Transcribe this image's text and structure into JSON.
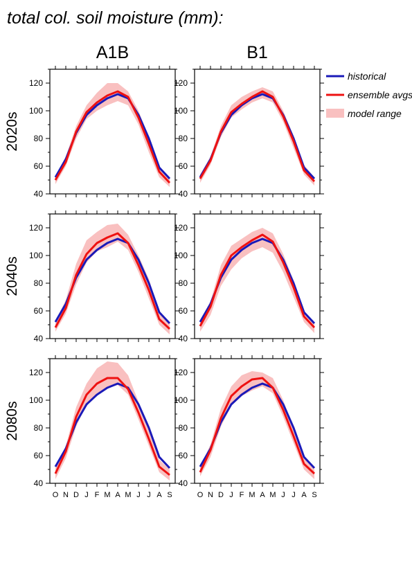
{
  "title": "total col. soil moisture (mm):",
  "columns": [
    "A1B",
    "B1"
  ],
  "rows": [
    "2020s",
    "2040s",
    "2080s"
  ],
  "legend": {
    "position": "right",
    "items": [
      {
        "label": "historical",
        "color": "#1a1ab8",
        "kind": "line"
      },
      {
        "label": "ensemble avgs",
        "color": "#ee1111",
        "kind": "line"
      },
      {
        "label": "model range",
        "color": "#f9c0c0",
        "kind": "band"
      }
    ]
  },
  "chart_data": {
    "type": "line",
    "months": [
      "O",
      "N",
      "D",
      "J",
      "F",
      "M",
      "A",
      "M",
      "J",
      "J",
      "A",
      "S"
    ],
    "ylim": [
      40,
      130
    ],
    "yticks": [
      40,
      60,
      80,
      100,
      120
    ],
    "grid": false,
    "historical": [
      52,
      65,
      84,
      97,
      104,
      109,
      112,
      109,
      97,
      80,
      59,
      51
    ],
    "panels": [
      {
        "column": "A1B",
        "row": "2020s",
        "ensemble": [
          50,
          63,
          85,
          99,
          106,
          111,
          114,
          110,
          95,
          76,
          56,
          48
        ],
        "range_min": [
          47,
          60,
          80,
          94,
          100,
          104,
          107,
          104,
          90,
          70,
          52,
          45
        ],
        "range_max": [
          53,
          67,
          89,
          104,
          113,
          120,
          120,
          114,
          100,
          81,
          60,
          51
        ]
      },
      {
        "column": "B1",
        "row": "2020s",
        "ensemble": [
          51,
          64,
          85,
          99,
          105,
          110,
          114,
          110,
          96,
          78,
          57,
          49
        ],
        "range_min": [
          48,
          61,
          81,
          95,
          101,
          106,
          109,
          106,
          92,
          73,
          54,
          46
        ],
        "range_max": [
          54,
          67,
          89,
          104,
          110,
          114,
          117,
          114,
          100,
          82,
          61,
          52
        ]
      },
      {
        "column": "A1B",
        "row": "2040s",
        "ensemble": [
          48,
          62,
          86,
          101,
          109,
          113,
          116,
          109,
          93,
          75,
          54,
          47
        ],
        "range_min": [
          45,
          58,
          79,
          95,
          103,
          106,
          110,
          104,
          88,
          69,
          50,
          43
        ],
        "range_max": [
          52,
          68,
          94,
          111,
          117,
          122,
          123,
          115,
          100,
          83,
          59,
          51
        ]
      },
      {
        "column": "B1",
        "row": "2040s",
        "ensemble": [
          49,
          63,
          86,
          100,
          106,
          111,
          115,
          110,
          95,
          77,
          56,
          48
        ],
        "range_min": [
          45,
          57,
          78,
          90,
          98,
          103,
          106,
          102,
          88,
          70,
          52,
          44
        ],
        "range_max": [
          53,
          67,
          93,
          107,
          112,
          117,
          120,
          116,
          101,
          82,
          60,
          51
        ]
      },
      {
        "column": "A1B",
        "row": "2080s",
        "ensemble": [
          47,
          63,
          88,
          104,
          112,
          116,
          116,
          108,
          91,
          72,
          52,
          46
        ],
        "range_min": [
          43,
          58,
          81,
          97,
          105,
          109,
          111,
          104,
          86,
          67,
          48,
          42
        ],
        "range_max": [
          51,
          67,
          95,
          112,
          123,
          128,
          127,
          118,
          99,
          79,
          57,
          50
        ]
      },
      {
        "column": "B1",
        "row": "2080s",
        "ensemble": [
          48,
          64,
          87,
          103,
          110,
          115,
          116,
          109,
          93,
          74,
          54,
          47
        ],
        "range_min": [
          45,
          59,
          81,
          96,
          103,
          107,
          110,
          105,
          88,
          69,
          50,
          43
        ],
        "range_max": [
          52,
          68,
          94,
          110,
          118,
          121,
          120,
          116,
          100,
          80,
          59,
          50
        ]
      }
    ]
  }
}
